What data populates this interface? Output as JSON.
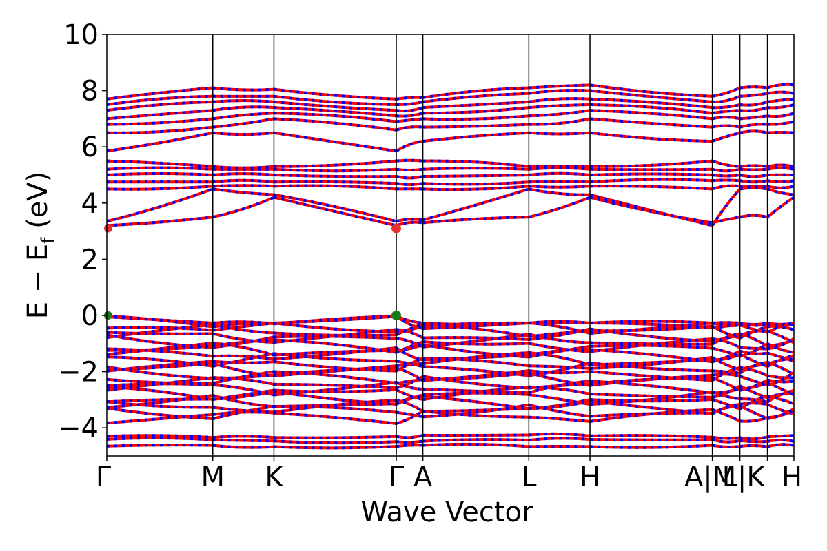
{
  "chart_data": {
    "type": "line",
    "title": "",
    "xlabel": "Wave Vector",
    "ylabel": "E − E",
    "ylabel_sub": "f",
    "ylabel_unit": " (eV)",
    "ylim": [
      -5,
      10
    ],
    "yticks": [
      -4,
      -2,
      0,
      2,
      4,
      6,
      8,
      10
    ],
    "ytick_labels": [
      "−4",
      "−2",
      "0",
      "2",
      "4",
      "6",
      "8",
      "10"
    ],
    "kpath_positions": [
      0,
      1.0,
      1.577,
      2.732,
      2.983,
      3.983,
      4.56,
      5.715,
      5.975,
      6.235,
      6.485
    ],
    "high_symmetry_labels": [
      "Γ",
      "M",
      "K",
      "Γ",
      "A",
      "L",
      "H",
      "A",
      "M",
      "L",
      "K"
    ],
    "combined_labels": [
      "A|M",
      "L|K"
    ],
    "combined_label_texts": [
      "A|M",
      "L|K",
      "H"
    ],
    "spin_up_color": "#ff0000",
    "spin_down_color": "#0000ff",
    "grid": false,
    "legend": "none",
    "band_segments": [
      {
        "from": "Γ",
        "to": "M"
      },
      {
        "from": "M",
        "to": "K"
      },
      {
        "from": "K",
        "to": "Γ"
      },
      {
        "from": "Γ",
        "to": "A"
      },
      {
        "from": "A",
        "to": "L"
      },
      {
        "from": "L",
        "to": "H"
      },
      {
        "from": "H",
        "to": "A"
      },
      {
        "from": "M",
        "to": "L"
      },
      {
        "from": "K",
        "to": "H"
      }
    ],
    "band_extremes": {
      "valence_max": {
        "k": "Γ",
        "energy": 0.0,
        "color": "#1a7a1a"
      },
      "conduction_min": {
        "k": "Γ",
        "energy": 3.1,
        "color": "#e83030"
      }
    }
  }
}
